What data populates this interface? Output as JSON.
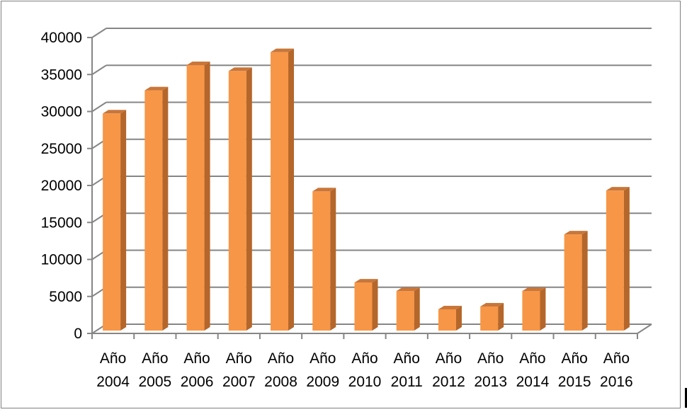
{
  "chart_data": {
    "type": "bar",
    "style": "3d-column",
    "categories": [
      "Año 2004",
      "Año 2005",
      "Año 2006",
      "Año 2007",
      "Año 2008",
      "Año 2009",
      "Año 2010",
      "Año 2011",
      "Año 2012",
      "Año 2013",
      "Año 2014",
      "Año 2015",
      "Año 2016"
    ],
    "category_lines": [
      [
        "Año",
        "2004"
      ],
      [
        "Año",
        "2005"
      ],
      [
        "Año",
        "2006"
      ],
      [
        "Año",
        "2007"
      ],
      [
        "Año",
        "2008"
      ],
      [
        "Año",
        "2009"
      ],
      [
        "Año",
        "2010"
      ],
      [
        "Año",
        "2011"
      ],
      [
        "Año",
        "2012"
      ],
      [
        "Año",
        "2013"
      ],
      [
        "Año",
        "2014"
      ],
      [
        "Año",
        "2015"
      ],
      [
        "Año",
        "2016"
      ]
    ],
    "values": [
      29350,
      32480,
      35880,
      35090,
      37640,
      18830,
      6500,
      5350,
      2870,
      3250,
      5350,
      13000,
      18930
    ],
    "ylim": [
      0,
      40000
    ],
    "yticks": [
      "0",
      "5000",
      "10000",
      "15000",
      "20000",
      "25000",
      "30000",
      "35000",
      "40000"
    ],
    "title": "",
    "xlabel": "",
    "ylabel": "",
    "grid": true,
    "legend": "none",
    "colors": {
      "bar_front": "#F79646",
      "bar_side": "#B5662A",
      "bar_top": "#C8763A",
      "grid": "#868686"
    }
  }
}
